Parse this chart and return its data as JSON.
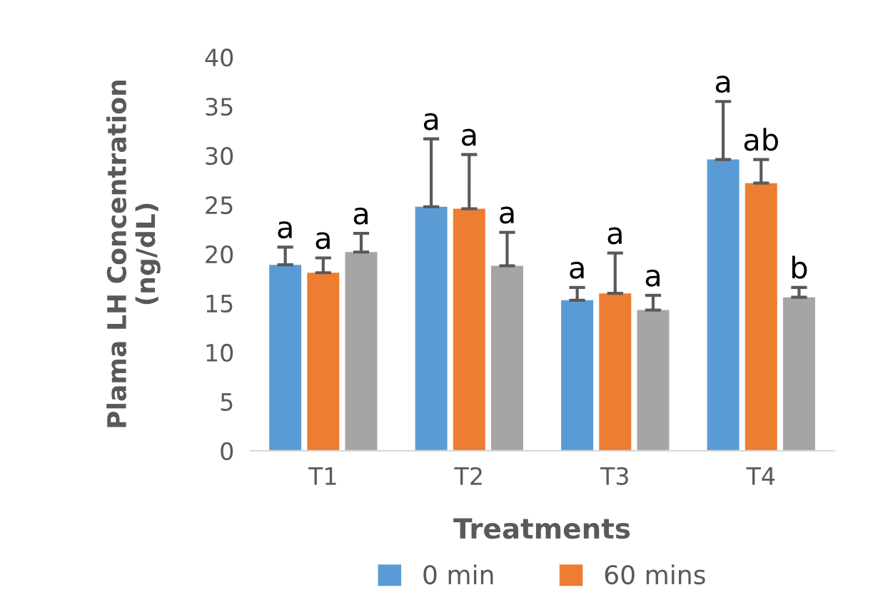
{
  "chart_data": {
    "type": "bar",
    "xlabel": "Treatments",
    "ylabel": "Plama LH Concentration\n(ng/dL)",
    "categories": [
      "T1",
      "T2",
      "T3",
      "T4"
    ],
    "series": [
      {
        "name": "0 min",
        "color": "#5b9bd5",
        "values": [
          18.9,
          24.8,
          15.3,
          29.6
        ],
        "errors": [
          [
            18.9,
            20.7
          ],
          [
            24.8,
            31.7
          ],
          [
            15.3,
            16.6
          ],
          [
            29.6,
            35.5
          ]
        ],
        "value_labels": [
          "a",
          "a",
          "a",
          "a"
        ]
      },
      {
        "name": "60 mins",
        "color": "#ed7d31",
        "values": [
          18.1,
          24.6,
          16.0,
          27.2
        ],
        "errors": [
          [
            18.1,
            19.6
          ],
          [
            24.6,
            30.1
          ],
          [
            16.0,
            20.1
          ],
          [
            27.2,
            29.6
          ]
        ],
        "value_labels": [
          "a",
          "a",
          "a",
          "ab"
        ]
      },
      {
        "color": "#a5a5a5",
        "values": [
          20.2,
          18.8,
          14.3,
          15.6
        ],
        "errors": [
          [
            20.2,
            22.1
          ],
          [
            18.8,
            22.2
          ],
          [
            14.3,
            15.8
          ],
          [
            15.6,
            16.6
          ]
        ],
        "value_labels": [
          "a",
          "a",
          "a",
          "b"
        ]
      }
    ],
    "ylim": [
      0,
      40
    ],
    "yticks": [
      0,
      5,
      10,
      15,
      20,
      25,
      30,
      35,
      40
    ],
    "grid": false,
    "legend": "bottom"
  }
}
